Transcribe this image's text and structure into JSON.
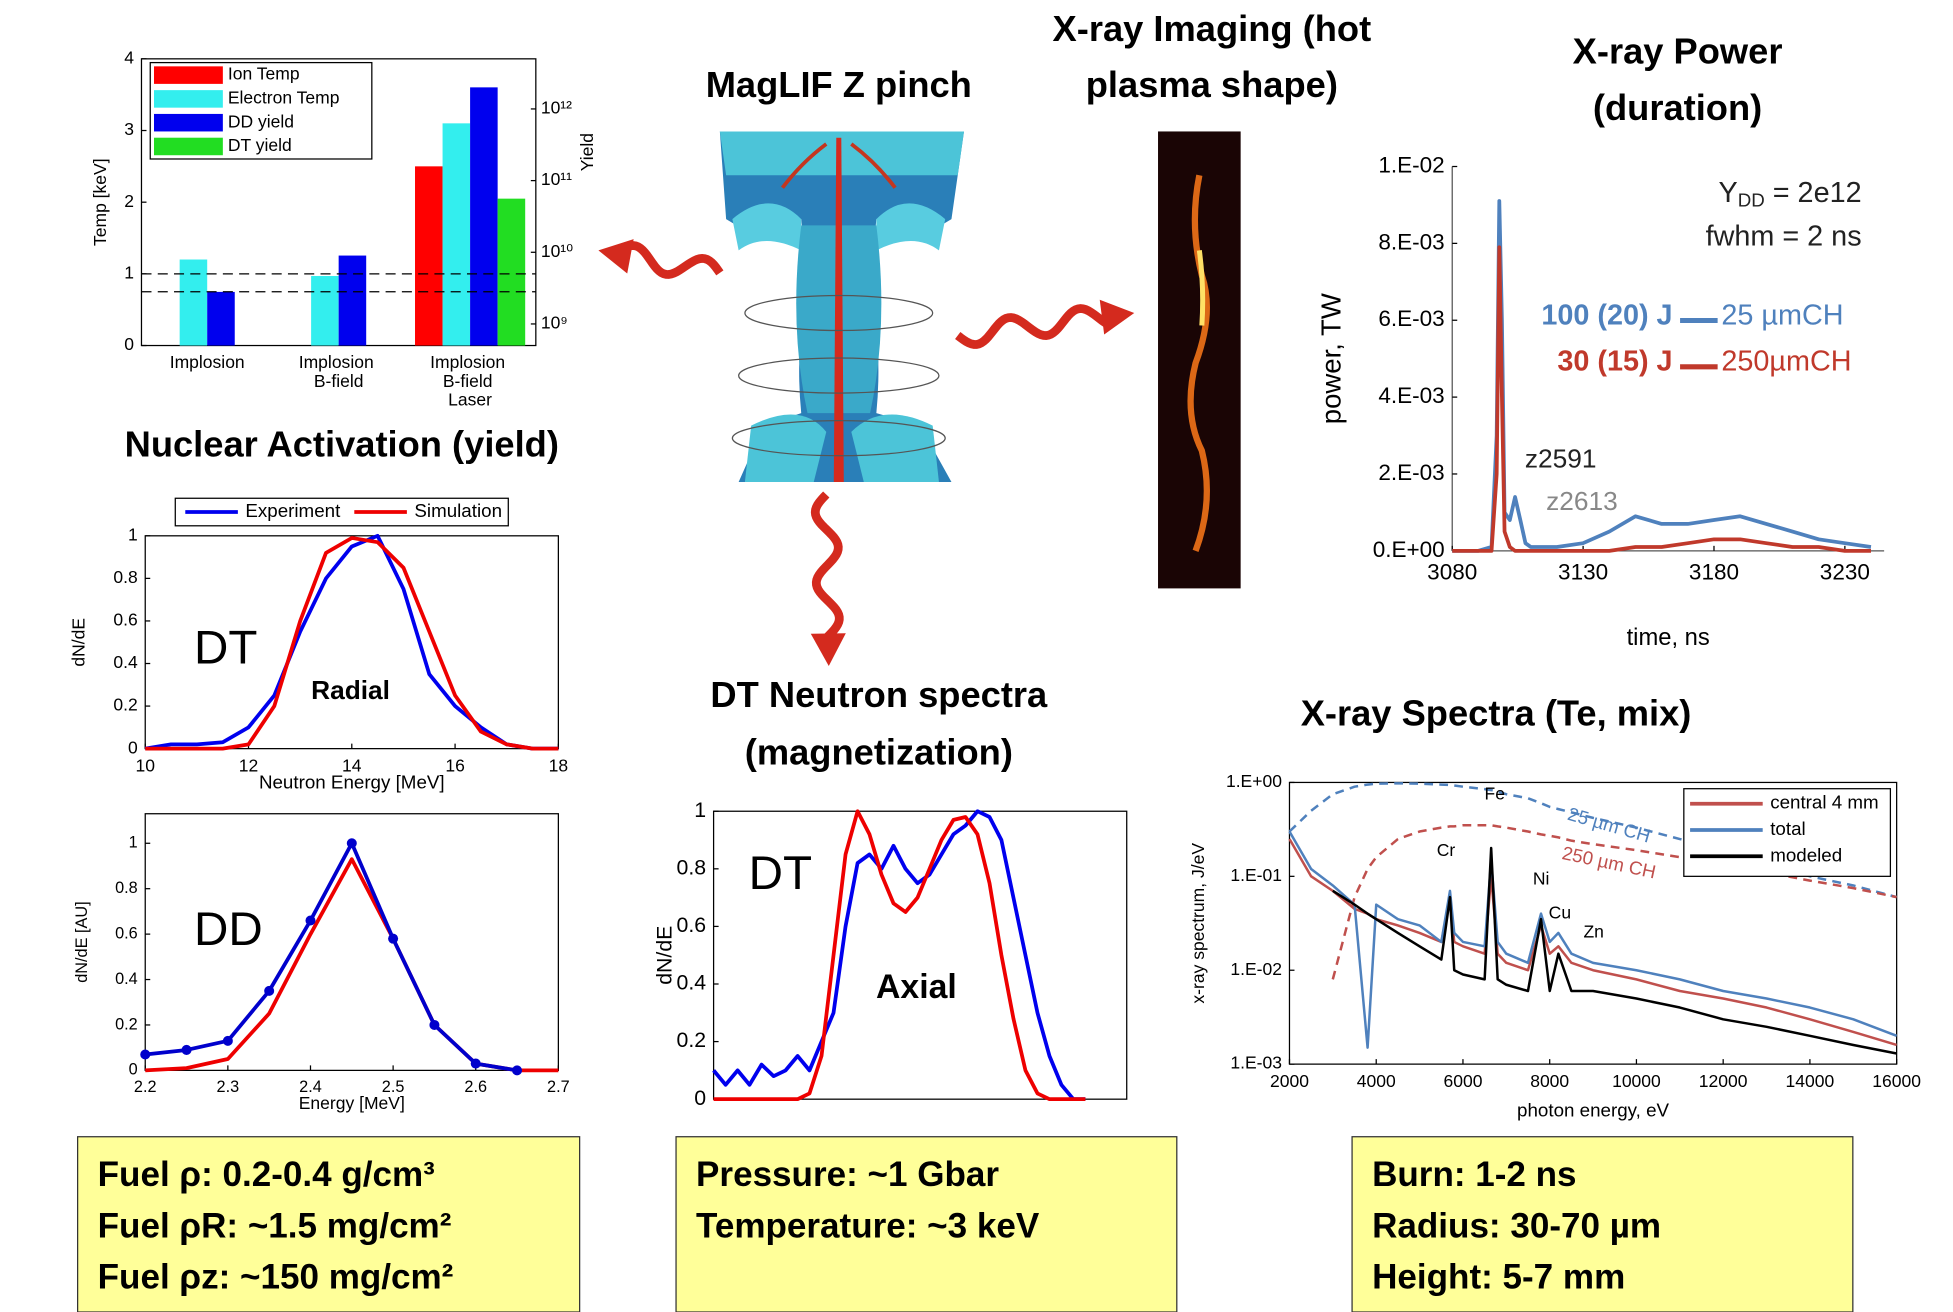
{
  "headings": {
    "zpinch": "MagLIF Z pinch",
    "imaging": [
      "X-ray Imaging (hot",
      "plasma shape)"
    ],
    "power": [
      "X-ray Power",
      "(duration)"
    ],
    "activation": "Nuclear Activation (yield)",
    "neutron": [
      "DT Neutron spectra",
      "(magnetization)"
    ],
    "spectra": "X-ray Spectra (Te, mix)"
  },
  "boxes": [
    [
      "Fuel ρ:  0.2-0.4 g/cm³",
      "Fuel ρR: ~1.5 mg/cm²",
      "Fuel ρz: ~150 mg/cm²"
    ],
    [
      "Pressure:  ~1 Gbar",
      "Temperature: ~3 keV"
    ],
    [
      "Burn:  1-2 ns",
      "Radius: 30-70 µm",
      "Height: 5-7 mm"
    ]
  ],
  "chart_data": [
    {
      "type": "bar",
      "frame": true,
      "categories": [
        "Implosion",
        "Implosion B-field",
        "Implosion B-field Laser"
      ],
      "ylabel": "Temp [keV]",
      "y2label": "Yield",
      "ylim": [
        0,
        4
      ],
      "yticks": [
        0,
        1,
        2,
        3,
        4
      ],
      "y2lim": [
        500000000,
        5000000000000
      ],
      "y2scale": "log",
      "y2ticks": [
        {
          "value": 1000000000,
          "label": "10⁹"
        },
        {
          "value": 10000000000,
          "label": "10¹⁰"
        },
        {
          "value": 100000000000,
          "label": "10¹¹"
        },
        {
          "value": 1000000000000,
          "label": "10¹²"
        }
      ],
      "hlines": [
        1,
        0.75
      ],
      "series": [
        {
          "name": "Ion Temp",
          "color": "#ff0000",
          "values": [
            null,
            null,
            2.5
          ]
        },
        {
          "name": "Electron Temp",
          "color": "#33eeee",
          "values": [
            1.2,
            0.97,
            3.1
          ]
        },
        {
          "name": "DD yield",
          "color": "#0000ee",
          "axis": "y2",
          "values": [
            2800000000,
            9000000000,
            2000000000000
          ]
        },
        {
          "name": "DT yield",
          "color": "#22dd22",
          "axis": "y2",
          "values": [
            null,
            null,
            56000000000
          ]
        }
      ]
    },
    {
      "type": "line",
      "frame": true,
      "xlabel": "Neutron Energy [MeV]",
      "ylabel": "dN/dE",
      "xlim": [
        10,
        18
      ],
      "xticks": [
        10,
        12,
        14,
        16,
        18
      ],
      "ylim": [
        0,
        1
      ],
      "yticks": [
        0,
        0.2,
        0.4,
        0.6,
        0.8,
        1
      ],
      "annotations": [
        "DT",
        "Radial"
      ],
      "x": [
        10,
        10.5,
        11,
        11.5,
        12,
        12.5,
        13,
        13.5,
        14,
        14.5,
        15,
        15.5,
        16,
        16.5,
        17,
        17.5,
        18
      ],
      "series": [
        {
          "name": "Experiment",
          "color": "#0000ee",
          "values": [
            0,
            0.02,
            0.02,
            0.03,
            0.1,
            0.25,
            0.55,
            0.8,
            0.95,
            1.0,
            0.75,
            0.35,
            0.2,
            0.1,
            0.02,
            0,
            0
          ]
        },
        {
          "name": "Simulation",
          "color": "#ee0000",
          "values": [
            0,
            0,
            0,
            0,
            0.02,
            0.2,
            0.6,
            0.92,
            0.99,
            0.97,
            0.85,
            0.55,
            0.25,
            0.08,
            0.02,
            0,
            0
          ]
        }
      ]
    },
    {
      "type": "line",
      "frame": true,
      "xlabel": "Energy [MeV]",
      "ylabel": "dN/dE [AU]",
      "xlim": [
        2.2,
        2.7
      ],
      "xticks": [
        2.2,
        2.3,
        2.4,
        2.5,
        2.6,
        2.7
      ],
      "ylim": [
        0,
        1.13
      ],
      "yticks": [
        0,
        0.2,
        0.4,
        0.6,
        0.8,
        1
      ],
      "annotations": [
        "DD"
      ],
      "series": [
        {
          "color": "#ee0000",
          "x": [
            2.2,
            2.25,
            2.3,
            2.35,
            2.4,
            2.45,
            2.5,
            2.55,
            2.6,
            2.65,
            2.7
          ],
          "values": [
            0,
            0.01,
            0.05,
            0.25,
            0.6,
            0.93,
            0.58,
            0.2,
            0.03,
            0,
            0
          ]
        },
        {
          "color": "#0000cc",
          "markers": true,
          "x": [
            2.2,
            2.25,
            2.3,
            2.35,
            2.4,
            2.45,
            2.5,
            2.55,
            2.6,
            2.65
          ],
          "values": [
            0.07,
            0.09,
            0.13,
            0.35,
            0.66,
            1.0,
            0.58,
            0.2,
            0.03,
            0
          ]
        }
      ]
    },
    {
      "type": "line",
      "frame": true,
      "ylabel": "dN/dE",
      "ylim": [
        0,
        1
      ],
      "yticks": [
        0,
        0.2,
        0.4,
        0.6,
        0.8,
        1
      ],
      "annotations": [
        "DT",
        "Axial"
      ],
      "series": [
        {
          "color": "#0000ee",
          "values": [
            0.1,
            0.05,
            0.1,
            0.05,
            0.12,
            0.08,
            0.1,
            0.15,
            0.1,
            0.2,
            0.3,
            0.6,
            0.82,
            0.85,
            0.8,
            0.88,
            0.8,
            0.75,
            0.78,
            0.85,
            0.92,
            0.95,
            1.0,
            0.98,
            0.9,
            0.7,
            0.5,
            0.3,
            0.15,
            0.05,
            0,
            0
          ]
        },
        {
          "color": "#ee0000",
          "values": [
            0,
            0,
            0,
            0,
            0,
            0,
            0,
            0,
            0.02,
            0.15,
            0.5,
            0.85,
            1.0,
            0.92,
            0.78,
            0.68,
            0.65,
            0.7,
            0.8,
            0.9,
            0.97,
            0.98,
            0.92,
            0.75,
            0.5,
            0.28,
            0.1,
            0.02,
            0,
            0,
            0,
            0
          ]
        }
      ]
    },
    {
      "type": "line",
      "frame": false,
      "xlabel": "time, ns",
      "ylabel": "power, TW",
      "xlim": [
        3080,
        3245
      ],
      "xticks": [
        3080,
        3130,
        3180,
        3230
      ],
      "ylim": [
        0,
        0.01
      ],
      "yticks": [
        {
          "value": 0,
          "label": "0.E+00"
        },
        {
          "value": 0.002,
          "label": "2.E-03"
        },
        {
          "value": 0.004,
          "label": "4.E-03"
        },
        {
          "value": 0.006,
          "label": "6.E-03"
        },
        {
          "value": 0.008,
          "label": "8.E-03"
        },
        {
          "value": 0.01,
          "label": "1.E-02"
        }
      ],
      "annotations": [
        [
          "Y",
          "DD",
          " = 2e12"
        ],
        "fwhm = 2 ns",
        "z2591",
        "z2613"
      ],
      "x": [
        3080,
        3090,
        3095,
        3097,
        3098,
        3099,
        3100,
        3102,
        3104,
        3106,
        3108,
        3110,
        3115,
        3120,
        3130,
        3140,
        3150,
        3160,
        3170,
        3180,
        3190,
        3200,
        3210,
        3220,
        3230,
        3240
      ],
      "series": [
        {
          "name": "25 µmCH",
          "energy": "100 (20) J",
          "color": "#4f81bd",
          "values": [
            0,
            0,
            0.0001,
            0.003,
            0.0091,
            0.006,
            0.001,
            0.0008,
            0.0014,
            0.0008,
            0.0002,
            0.0001,
            0.0001,
            0.0001,
            0.0002,
            0.0005,
            0.0009,
            0.0007,
            0.0007,
            0.0008,
            0.0009,
            0.0007,
            0.0005,
            0.0003,
            0.0002,
            0.0001
          ]
        },
        {
          "name": "250µmCH",
          "energy": "30 (15) J",
          "color": "#c0392b",
          "values": [
            0,
            0,
            0,
            0.002,
            0.0079,
            0.004,
            0.0005,
            0.0001,
            0,
            0,
            0,
            0,
            0,
            0,
            0,
            0,
            0.0001,
            0.0001,
            0.0002,
            0.0003,
            0.0003,
            0.0002,
            0.0001,
            0.0001,
            0,
            0
          ]
        }
      ]
    },
    {
      "type": "line",
      "frame": true,
      "xlabel": "photon energy, eV",
      "ylabel": "x-ray spectrum, J/eV",
      "xlim": [
        2000,
        16000
      ],
      "xticks": [
        2000,
        4000,
        6000,
        8000,
        10000,
        12000,
        14000,
        16000
      ],
      "ylim": [
        0.001,
        1
      ],
      "yscale": "log",
      "yticks": [
        {
          "value": 0.001,
          "label": "1.E-03"
        },
        {
          "value": 0.01,
          "label": "1.E-02"
        },
        {
          "value": 0.1,
          "label": "1.E-01"
        },
        {
          "value": 1,
          "label": "1.E+00"
        }
      ],
      "annotations": [
        "Cr",
        "Fe",
        "Ni",
        "Cu",
        "Zn"
      ],
      "x": [
        2000,
        2500,
        3000,
        3500,
        3800,
        4000,
        4500,
        5000,
        5500,
        5700,
        5800,
        6000,
        6500,
        6650,
        6800,
        7000,
        7500,
        7800,
        8000,
        8200,
        8500,
        9000,
        10000,
        11000,
        12000,
        13000,
        14000,
        15000,
        16000
      ],
      "series": [
        {
          "name": "25 µm CH",
          "dashed": true,
          "color": "#4f81bd",
          "values": [
            0.3,
            0.5,
            0.75,
            0.9,
            0.95,
            0.97,
            0.98,
            0.97,
            0.95,
            0.94,
            0.93,
            0.9,
            0.85,
            0.83,
            0.8,
            0.75,
            0.68,
            0.6,
            0.55,
            0.52,
            0.48,
            0.42,
            0.33,
            0.25,
            0.19,
            0.14,
            0.1,
            0.08,
            0.06
          ]
        },
        {
          "name": "250 µm CH",
          "dashed": true,
          "color": "#c0504d",
          "values": [
            null,
            null,
            0.008,
            0.06,
            0.12,
            0.16,
            0.25,
            0.3,
            0.33,
            0.34,
            0.34,
            0.35,
            0.35,
            0.35,
            0.34,
            0.33,
            0.3,
            0.28,
            0.27,
            0.26,
            0.24,
            0.22,
            0.19,
            0.16,
            0.13,
            0.11,
            0.09,
            0.075,
            0.06
          ]
        },
        {
          "name": "central 4 mm",
          "color": "#c0504d",
          "values": [
            0.25,
            0.1,
            0.07,
            0.045,
            0.04,
            0.035,
            0.03,
            0.025,
            0.02,
            0.06,
            0.02,
            0.018,
            0.015,
            0.1,
            0.015,
            0.012,
            0.01,
            0.03,
            0.015,
            0.018,
            0.012,
            0.01,
            0.008,
            0.006,
            0.005,
            0.004,
            0.003,
            0.0022,
            0.0016
          ]
        },
        {
          "name": "total",
          "color": "#4f81bd",
          "values": [
            0.3,
            0.12,
            0.08,
            0.05,
            0.0015,
            0.05,
            0.035,
            0.03,
            0.02,
            0.07,
            0.025,
            0.02,
            0.018,
            0.15,
            0.02,
            0.015,
            0.012,
            0.04,
            0.02,
            0.025,
            0.015,
            0.012,
            0.01,
            0.008,
            0.006,
            0.005,
            0.004,
            0.003,
            0.002
          ]
        },
        {
          "name": "modeled",
          "color": "#000000",
          "values": [
            null,
            null,
            0.07,
            0.05,
            0.04,
            0.035,
            0.025,
            0.018,
            0.013,
            0.06,
            0.01,
            0.009,
            0.008,
            0.2,
            0.008,
            0.007,
            0.006,
            0.035,
            0.006,
            0.015,
            0.006,
            0.006,
            0.005,
            0.004,
            0.003,
            0.0025,
            0.002,
            0.0016,
            0.0013
          ]
        }
      ]
    }
  ]
}
